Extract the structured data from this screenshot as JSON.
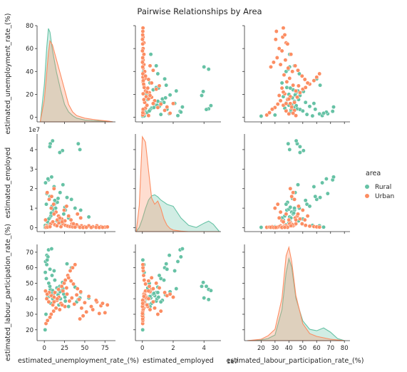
{
  "chart_data": {
    "type": "scatter",
    "title": "Pairwise Relationships by Area",
    "variables": [
      "estimated_unemployment_rate_(%)",
      "estimated_employed",
      "estimated_labour_participation_rate_(%)"
    ],
    "axis_ticks": [
      [
        0,
        25,
        50,
        75
      ],
      [
        0,
        2,
        4
      ],
      [
        20,
        30,
        40,
        50,
        60,
        70,
        80
      ]
    ],
    "y_axis_ticks": [
      [
        0,
        20,
        40,
        60,
        80
      ],
      [
        0,
        1,
        2,
        3,
        4
      ],
      [
        20,
        30,
        40,
        50,
        60,
        70
      ]
    ],
    "axis_ranges": [
      [
        -9,
        88
      ],
      [
        -0.45,
        5.1
      ],
      [
        8,
        84
      ]
    ],
    "y_axis_ranges": [
      [
        -4,
        80
      ],
      [
        -0.2,
        4.8
      ],
      [
        13,
        75
      ]
    ],
    "offset_label": "1e7",
    "legend": {
      "title": "area",
      "placement": "right",
      "entries": [
        {
          "name": "Rural",
          "color": "#66c2a5"
        },
        {
          "name": "Urban",
          "color": "#fc8d62"
        }
      ]
    },
    "series": [
      {
        "name": "Rural",
        "color": "#66c2a5",
        "points": [
          [
            5.2,
            2.45,
            71.5
          ],
          [
            9.0,
            2.6,
            72.2
          ],
          [
            12.1,
            2.1,
            58.0
          ],
          [
            7.4,
            4.3,
            46.0
          ],
          [
            10.2,
            4.45,
            45.3
          ],
          [
            6.8,
            4.15,
            48.0
          ],
          [
            22.5,
            3.95,
            50.5
          ],
          [
            19.0,
            3.85,
            48.0
          ],
          [
            3.1,
            1.75,
            68.0
          ],
          [
            28.0,
            1.55,
            62.5
          ],
          [
            33.5,
            1.45,
            60.0
          ],
          [
            2.5,
            1.2,
            53.0
          ],
          [
            38.0,
            1.0,
            47.5
          ],
          [
            45.0,
            0.9,
            44.0
          ],
          [
            55.0,
            0.55,
            40.5
          ],
          [
            4.0,
            0.3,
            41.0
          ],
          [
            6.0,
            0.15,
            38.0
          ],
          [
            8.0,
            0.6,
            37.0
          ],
          [
            11.0,
            0.8,
            42.0
          ],
          [
            14.0,
            1.0,
            44.0
          ],
          [
            16.0,
            1.3,
            39.0
          ],
          [
            18.0,
            0.4,
            36.0
          ],
          [
            20.0,
            0.25,
            40.0
          ],
          [
            24.0,
            0.7,
            43.0
          ],
          [
            26.0,
            0.9,
            38.5
          ],
          [
            30.0,
            0.5,
            35.0
          ],
          [
            2.0,
            0.05,
            30.0
          ],
          [
            3.0,
            0.1,
            62.0
          ],
          [
            1.5,
            2.3,
            64.0
          ],
          [
            4.5,
            2.5,
            67.0
          ],
          [
            7.0,
            1.6,
            59.0
          ],
          [
            9.5,
            1.1,
            55.0
          ],
          [
            13.0,
            1.4,
            52.0
          ],
          [
            15.5,
            0.35,
            47.0
          ],
          [
            21.0,
            0.2,
            45.0
          ],
          [
            40.0,
            0.08,
            38.0
          ],
          [
            42.0,
            4.3,
            39.5
          ],
          [
            44.0,
            4.0,
            40.5
          ],
          [
            1.0,
            0.02,
            20.0
          ],
          [
            3.5,
            0.03,
            65.0
          ],
          [
            6.5,
            0.5,
            41.5
          ],
          [
            8.5,
            0.75,
            43.5
          ],
          [
            10.5,
            0.95,
            40.0
          ],
          [
            12.5,
            1.2,
            38.0
          ],
          [
            17.0,
            1.5,
            42.5
          ],
          [
            19.5,
            1.8,
            44.5
          ],
          [
            23.0,
            2.2,
            46.5
          ],
          [
            25.5,
            1.05,
            41.0
          ],
          [
            5.5,
            0.45,
            50.0
          ],
          [
            1.2,
            0.12,
            57.0
          ]
        ]
      },
      {
        "name": "Urban",
        "color": "#fc8d62",
        "points": [
          [
            3.0,
            0.1,
            40.0
          ],
          [
            5.5,
            0.05,
            38.0
          ],
          [
            8.0,
            0.2,
            42.0
          ],
          [
            10.5,
            0.3,
            36.0
          ],
          [
            13.0,
            0.15,
            44.0
          ],
          [
            15.5,
            0.1,
            39.0
          ],
          [
            18.0,
            0.25,
            41.0
          ],
          [
            20.5,
            0.05,
            37.0
          ],
          [
            23.0,
            0.2,
            45.0
          ],
          [
            25.5,
            0.35,
            35.0
          ],
          [
            28.0,
            0.1,
            43.0
          ],
          [
            31.0,
            0.05,
            38.5
          ],
          [
            34.0,
            0.2,
            40.5
          ],
          [
            37.0,
            0.1,
            36.5
          ],
          [
            40.0,
            0.15,
            42.5
          ],
          [
            43.0,
            0.05,
            39.5
          ],
          [
            46.0,
            0.1,
            34.0
          ],
          [
            50.0,
            0.05,
            37.5
          ],
          [
            55.0,
            0.1,
            41.5
          ],
          [
            60.0,
            0.05,
            33.0
          ],
          [
            65.0,
            0.1,
            38.0
          ],
          [
            70.0,
            0.05,
            35.5
          ],
          [
            75.0,
            0.03,
            31.0
          ],
          [
            78.0,
            0.04,
            36.0
          ],
          [
            8.5,
            1.0,
            30.0
          ],
          [
            11.5,
            1.2,
            32.0
          ],
          [
            14.5,
            0.8,
            34.0
          ],
          [
            17.5,
            0.6,
            46.0
          ],
          [
            21.5,
            0.45,
            48.0
          ],
          [
            24.5,
            0.9,
            50.0
          ],
          [
            27.5,
            1.1,
            47.0
          ],
          [
            6.0,
            1.45,
            44.0
          ],
          [
            9.0,
            1.6,
            42.0
          ],
          [
            12.0,
            0.7,
            38.0
          ],
          [
            16.0,
            0.4,
            40.0
          ],
          [
            19.0,
            0.5,
            33.0
          ],
          [
            22.0,
            0.3,
            36.0
          ],
          [
            26.0,
            0.12,
            52.0
          ],
          [
            29.0,
            0.08,
            55.0
          ],
          [
            32.0,
            0.06,
            58.0
          ],
          [
            35.0,
            0.04,
            60.0
          ],
          [
            38.0,
            0.03,
            62.0
          ],
          [
            2.0,
            0.02,
            24.0
          ],
          [
            4.0,
            0.03,
            26.0
          ],
          [
            7.0,
            0.05,
            28.0
          ],
          [
            44.0,
            0.02,
            27.0
          ],
          [
            48.0,
            0.01,
            29.0
          ],
          [
            52.0,
            0.02,
            31.5
          ],
          [
            58.0,
            0.01,
            35.0
          ],
          [
            64.0,
            0.02,
            39.0
          ],
          [
            68.0,
            0.01,
            30.5
          ],
          [
            72.0,
            0.02,
            37.0
          ],
          [
            45.0,
            0.5,
            44.5
          ],
          [
            41.0,
            0.7,
            46.5
          ],
          [
            36.0,
            0.2,
            49.5
          ],
          [
            33.0,
            0.4,
            51.5
          ],
          [
            30.0,
            0.6,
            53.5
          ],
          [
            12.0,
            2.0,
            41.0
          ],
          [
            3.5,
            1.8,
            43.0
          ],
          [
            1.5,
            0.4,
            45.0
          ]
        ]
      }
    ],
    "diagonal_kde": [
      {
        "x": [
          -5,
          0,
          3,
          5,
          7,
          10,
          15,
          20,
          25,
          30,
          35,
          40,
          50,
          60,
          70,
          80,
          85
        ],
        "series": [
          {
            "name": "Rural",
            "values": [
              0,
              30,
              60,
              75,
              72,
              58,
              40,
              26,
              14,
              8,
              5,
              3,
              1.5,
              1,
              0.7,
              0.3,
              0
            ]
          },
          {
            "name": "Urban",
            "values": [
              0,
              18,
              40,
              55,
              65,
              62,
              50,
              38,
              26,
              14,
              8,
              5,
              3,
              2,
              1.2,
              0.5,
              0
            ]
          }
        ]
      },
      {
        "x": [
          -0.4,
          -0.2,
          0,
          0.2,
          0.4,
          0.6,
          0.8,
          1.0,
          1.2,
          1.4,
          1.6,
          1.8,
          2.0,
          2.5,
          3.0,
          3.5,
          4.0,
          4.3,
          4.6,
          5.0
        ],
        "series": [
          {
            "name": "Rural",
            "values": [
              0,
              0.4,
              1.2,
              2.2,
              3.0,
              3.4,
              3.5,
              3.3,
              3.0,
              2.8,
              2.6,
              2.5,
              2.4,
              1.3,
              0.6,
              0.4,
              0.8,
              1.0,
              0.7,
              0
            ]
          },
          {
            "name": "Urban",
            "values": [
              0,
              2.5,
              9.0,
              8.5,
              5.8,
              3.2,
              2.6,
              2.9,
              2.2,
              1.2,
              0.6,
              0.3,
              0.15,
              0.05,
              0,
              0,
              0,
              0,
              0,
              0
            ]
          }
        ]
      },
      {
        "x": [
          10,
          20,
          25,
          30,
          35,
          38,
          40,
          42,
          45,
          50,
          55,
          60,
          65,
          70,
          75,
          80
        ],
        "series": [
          {
            "name": "Rural",
            "values": [
              0,
              0.5,
              1.5,
              4.0,
              22,
              48,
              58,
              52,
              30,
              14,
              8,
              7,
              9,
              6,
              1.5,
              0
            ]
          },
          {
            "name": "Urban",
            "values": [
              0,
              1.0,
              3.5,
              8.0,
              30,
              60,
              66,
              56,
              32,
              12,
              5,
              3,
              2,
              1,
              0.5,
              0
            ]
          }
        ]
      }
    ]
  }
}
